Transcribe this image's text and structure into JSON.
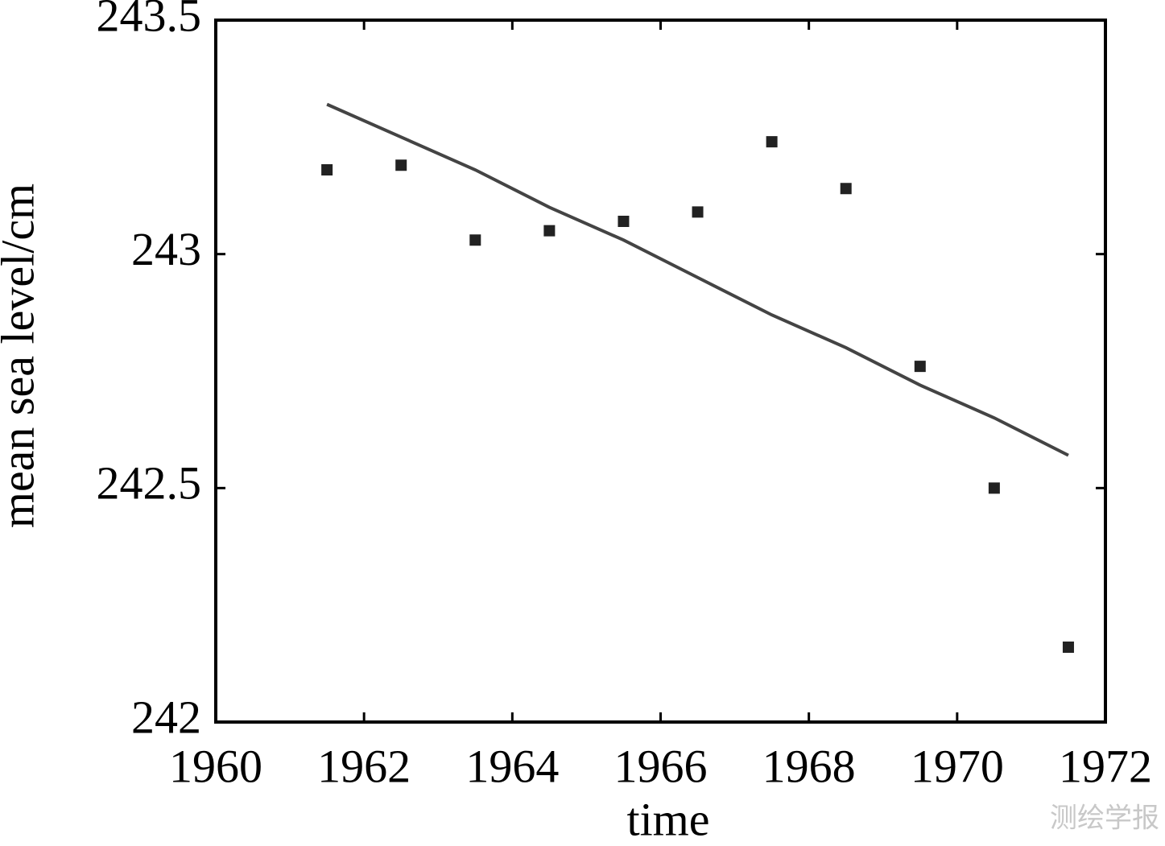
{
  "chart_data": {
    "type": "scatter",
    "xlabel": "time",
    "ylabel": "mean sea level/cm",
    "xlim": [
      1960,
      1972
    ],
    "xticks": [
      1960,
      1962,
      1964,
      1966,
      1968,
      1970,
      1972
    ],
    "ylim": [
      242,
      243.5
    ],
    "yticks": [
      242,
      242.5,
      243,
      243.5
    ],
    "series": [
      {
        "type": "scatter",
        "color": "#222222",
        "x": [
          1961.5,
          1962.5,
          1963.5,
          1964.5,
          1965.5,
          1966.5,
          1967.5,
          1968.5,
          1969.5,
          1970.5,
          1971.5
        ],
        "values": [
          243.18,
          243.19,
          243.03,
          243.05,
          243.07,
          243.09,
          243.24,
          243.14,
          242.76,
          242.5,
          242.16
        ]
      },
      {
        "type": "line",
        "color": "#444444",
        "x": [
          1961.5,
          1962.5,
          1963.5,
          1964.5,
          1965.5,
          1966.5,
          1967.5,
          1968.5,
          1969.5,
          1970.5,
          1971.5
        ],
        "values": [
          243.32,
          243.25,
          243.18,
          243.1,
          243.03,
          242.95,
          242.87,
          242.8,
          242.72,
          242.65,
          242.57
        ]
      }
    ]
  },
  "watermark": "测绘学报"
}
